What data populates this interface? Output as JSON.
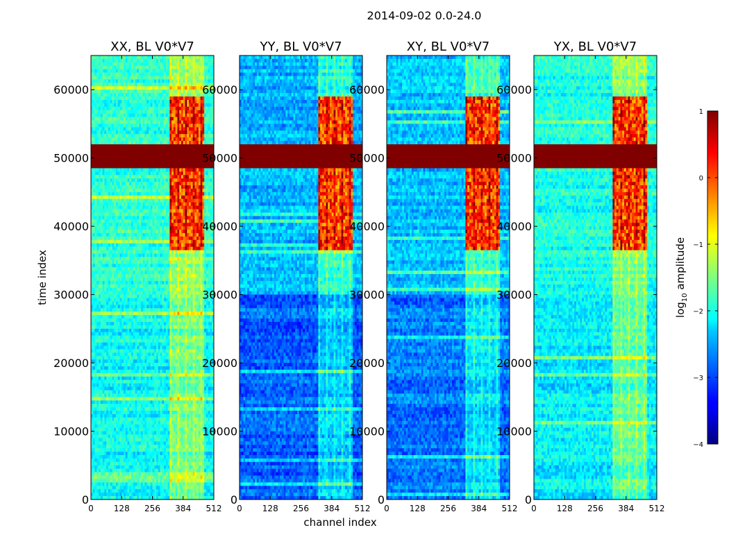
{
  "chart_data": {
    "type": "heatmap",
    "title": "2014-09-02 0.0-24.0",
    "xlabel": "channel index",
    "ylabel": "time index",
    "xlim": [
      0,
      512
    ],
    "ylim": [
      0,
      65000
    ],
    "x_ticks": [
      0,
      128,
      256,
      384,
      512
    ],
    "y_ticks": [
      0,
      10000,
      20000,
      30000,
      40000,
      50000,
      60000
    ],
    "colorbar": {
      "label_base": "log",
      "label_sub": "10",
      "label_rest": " amplitude",
      "range": [
        -4,
        1
      ],
      "ticks": [
        1,
        0,
        -1,
        -2,
        -3,
        -4
      ],
      "colormap": "jet"
    },
    "panels": [
      {
        "title": "XX, BL V0*V7",
        "background_level": -1.9,
        "low_band_level": -2.1
      },
      {
        "title": "YY, BL V0*V7",
        "background_level": -2.5,
        "low_band_level": -2.9
      },
      {
        "title": "XY, BL V0*V7",
        "background_level": -2.4,
        "low_band_level": -2.8
      },
      {
        "title": "YX, BL V0*V7",
        "background_level": -2.0,
        "low_band_level": -2.2
      }
    ],
    "saturated_band_time": [
      48500,
      52000
    ],
    "rfi_channel_range": [
      325,
      470
    ],
    "rfi_strong_time_ranges": [
      [
        36500,
        48500
      ],
      [
        52000,
        59000
      ]
    ]
  }
}
